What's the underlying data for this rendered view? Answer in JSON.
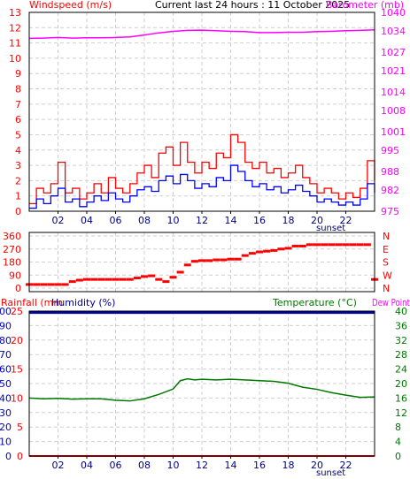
{
  "header": {
    "left_label": "Windspeed (m/s)",
    "center_label": "Current last 24 hours : 11 October 2025",
    "right_label": "Barometer (mb)"
  },
  "panel2_header": {
    "rainfall_label": "Rainfall (mm",
    "humidity_label": "Humidity (%)",
    "temperature_label": "Temperature (°C)",
    "dewpoint_label": "Dew Point"
  },
  "sunset_label": "sunset",
  "colors": {
    "wind_gust": "#ff0000",
    "wind_avg": "#0000ff",
    "barometer": "#ff00ff",
    "direction": "#ff0000",
    "humidity": "#0000a0",
    "temperature": "#007700",
    "rainfall": "#ff0000"
  },
  "chart_data": [
    {
      "type": "line",
      "x_ticks": [
        "02",
        "04",
        "06",
        "08",
        "10",
        "12",
        "14",
        "16",
        "18",
        "20",
        "22"
      ],
      "xlim": [
        0,
        24
      ],
      "y_left_label": "Windspeed (m/s)",
      "y_left_ticks": [
        0,
        1,
        2,
        3,
        4,
        5,
        6,
        7,
        8,
        9,
        10,
        11,
        12,
        13
      ],
      "y_left_lim": [
        0,
        13
      ],
      "y_right_label": "Barometer (mb)",
      "y_right_ticks": [
        975,
        982,
        988,
        995,
        1001,
        1008,
        1014,
        1021,
        1027,
        1034,
        1040
      ],
      "y_right_lim": [
        975,
        1040
      ],
      "series": [
        {
          "key": "gust",
          "x": [
            0,
            0.5,
            1,
            1.5,
            2,
            2.5,
            3,
            3.5,
            4,
            4.5,
            5,
            5.5,
            6,
            6.5,
            7,
            7.5,
            8,
            8.5,
            9,
            9.5,
            10,
            10.5,
            11,
            11.5,
            12,
            12.5,
            13,
            13.5,
            14,
            14.5,
            15,
            15.5,
            16,
            16.5,
            17,
            17.5,
            18,
            18.5,
            19,
            19.5,
            20,
            20.5,
            21,
            21.5,
            22,
            22.5,
            23,
            23.5,
            24
          ],
          "values": [
            0.5,
            1.5,
            1.2,
            1.8,
            3.2,
            1.2,
            1.5,
            0.8,
            1.2,
            1.8,
            1.2,
            2.2,
            1.5,
            1.2,
            1.8,
            2.5,
            3.0,
            2.2,
            3.8,
            4.2,
            3.0,
            4.5,
            3.2,
            2.5,
            3.2,
            2.8,
            3.8,
            3.5,
            5.0,
            4.5,
            3.2,
            2.8,
            3.2,
            2.5,
            2.8,
            2.2,
            2.5,
            3.0,
            2.2,
            1.8,
            1.2,
            1.5,
            1.2,
            0.8,
            1.2,
            0.9,
            1.5,
            3.3,
            2.0
          ]
        },
        {
          "key": "avg",
          "x": [
            0,
            0.5,
            1,
            1.5,
            2,
            2.5,
            3,
            3.5,
            4,
            4.5,
            5,
            5.5,
            6,
            6.5,
            7,
            7.5,
            8,
            8.5,
            9,
            9.5,
            10,
            10.5,
            11,
            11.5,
            12,
            12.5,
            13,
            13.5,
            14,
            14.5,
            15,
            15.5,
            16,
            16.5,
            17,
            17.5,
            18,
            18.5,
            19,
            19.5,
            20,
            20.5,
            21,
            21.5,
            22,
            22.5,
            23,
            23.5,
            24
          ],
          "values": [
            0.2,
            0.8,
            0.5,
            1.0,
            1.5,
            0.6,
            0.8,
            0.3,
            0.6,
            1.0,
            0.7,
            1.2,
            0.8,
            0.6,
            1.0,
            1.4,
            1.6,
            1.3,
            2.0,
            2.3,
            1.8,
            2.4,
            2.0,
            1.5,
            1.8,
            1.6,
            2.2,
            2.0,
            3.0,
            2.6,
            2.0,
            1.6,
            1.8,
            1.4,
            1.6,
            1.2,
            1.4,
            1.7,
            1.3,
            1.0,
            0.6,
            0.8,
            0.6,
            0.4,
            0.6,
            0.4,
            0.8,
            1.8,
            1.2
          ]
        },
        {
          "key": "barometer",
          "axis": "right",
          "x": [
            0,
            1,
            2,
            3,
            4,
            5,
            6,
            7,
            8,
            9,
            10,
            11,
            12,
            13,
            14,
            15,
            16,
            17,
            18,
            19,
            20,
            21,
            22,
            23,
            24
          ],
          "values": [
            1031.5,
            1031.6,
            1031.8,
            1031.6,
            1031.7,
            1031.7,
            1031.8,
            1032.0,
            1032.6,
            1033.3,
            1033.8,
            1034.1,
            1034.2,
            1034.0,
            1033.8,
            1033.7,
            1033.4,
            1033.4,
            1033.5,
            1033.5,
            1033.7,
            1033.8,
            1034.0,
            1034.1,
            1034.3
          ]
        }
      ]
    },
    {
      "type": "scatter",
      "y_ticks": [
        0,
        90,
        180,
        270,
        360
      ],
      "ylim": [
        0,
        360
      ],
      "y_right_ticks": [
        "N",
        "W",
        "S",
        "E",
        "N"
      ],
      "series": [
        {
          "key": "direction",
          "x": [
            0,
            0.5,
            1,
            1.5,
            2,
            2.5,
            3,
            3.5,
            4,
            4.5,
            5,
            5.5,
            6,
            6.5,
            7,
            7.5,
            8,
            8.5,
            9,
            9.5,
            10,
            10.5,
            11,
            11.5,
            12,
            12.5,
            13,
            13.5,
            14,
            14.5,
            15,
            15.5,
            16,
            16.5,
            17,
            17.5,
            18,
            18.5,
            19,
            19.5,
            20,
            20.5,
            21,
            21.5,
            22,
            22.5,
            23,
            23.5,
            24
          ],
          "values": [
            25,
            25,
            25,
            25,
            25,
            25,
            45,
            55,
            60,
            60,
            60,
            60,
            60,
            60,
            60,
            70,
            80,
            85,
            60,
            45,
            75,
            110,
            160,
            185,
            190,
            190,
            195,
            195,
            200,
            200,
            225,
            240,
            250,
            255,
            260,
            270,
            275,
            290,
            290,
            300,
            300,
            300,
            300,
            300,
            300,
            300,
            300,
            300,
            60
          ]
        }
      ]
    },
    {
      "type": "line",
      "y_left_label": "Rainfall (mm",
      "y_left_ticks": [
        0,
        10,
        20,
        30,
        40,
        50,
        60,
        70,
        80,
        90,
        100
      ],
      "y_left_lim": [
        0,
        100
      ],
      "y_inner_label": "Humidity (%)",
      "y_inner_ticks": [
        0,
        5,
        10,
        15,
        20,
        25
      ],
      "y_right_label": "Temperature (°C)",
      "y_right_ticks": [
        0,
        4,
        8,
        12,
        16,
        20,
        24,
        28,
        32,
        36,
        40
      ],
      "y_right_lim": [
        0,
        40
      ],
      "series": [
        {
          "key": "humidity",
          "x": [
            0,
            24
          ],
          "values": [
            99,
            99
          ]
        },
        {
          "key": "temperature",
          "axis": "right",
          "x": [
            0,
            1,
            2,
            3,
            4,
            5,
            6,
            7,
            8,
            9,
            10,
            10.5,
            11,
            11.5,
            12,
            13,
            14,
            15,
            16,
            17,
            18,
            19,
            20,
            21,
            22,
            23,
            24
          ],
          "values": [
            16.0,
            15.8,
            15.9,
            15.7,
            15.8,
            15.8,
            15.4,
            15.2,
            15.8,
            17.0,
            18.5,
            20.8,
            21.3,
            21.0,
            21.2,
            21.0,
            21.2,
            21.0,
            20.8,
            20.6,
            20.1,
            19.0,
            18.4,
            17.5,
            16.8,
            16.2,
            16.3
          ]
        },
        {
          "key": "rainfall",
          "x": [
            0,
            24
          ],
          "values": [
            0,
            0
          ]
        }
      ]
    }
  ]
}
